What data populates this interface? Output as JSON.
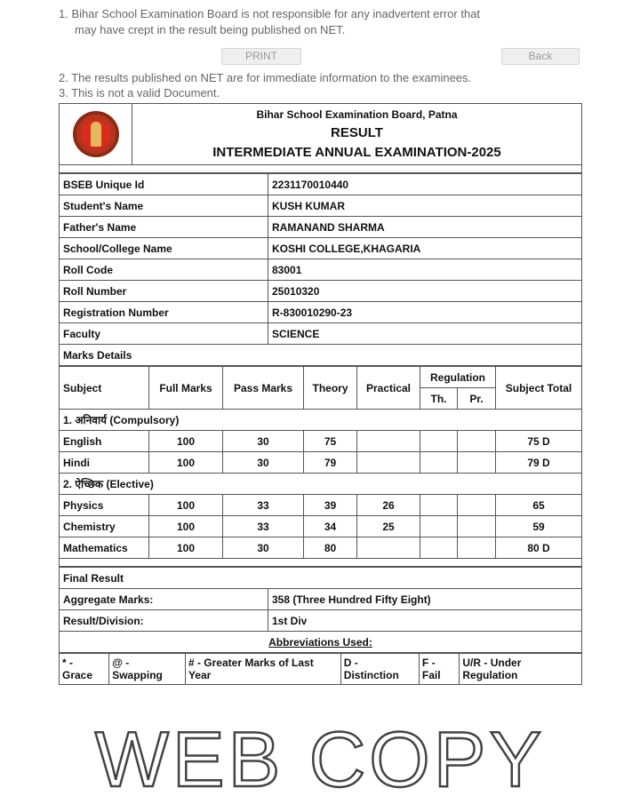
{
  "toolbar": {
    "print_label": "PRINT",
    "back_label": "Back"
  },
  "header": {
    "board": "Bihar School Examination Board, Patna",
    "title": "RESULT",
    "exam": "INTERMEDIATE ANNUAL EXAMINATION-2025"
  },
  "student": [
    {
      "label": "BSEB Unique Id",
      "value": "2231170010440"
    },
    {
      "label": "Student's Name",
      "value": "KUSH KUMAR"
    },
    {
      "label": "Father's Name",
      "value": "RAMANAND SHARMA"
    },
    {
      "label": "School/College Name",
      "value": "KOSHI COLLEGE,KHAGARIA"
    },
    {
      "label": "Roll Code",
      "value": "83001"
    },
    {
      "label": "Roll Number",
      "value": "25010320"
    },
    {
      "label": "Registration Number",
      "value": "R-830010290-23"
    },
    {
      "label": "Faculty",
      "value": "SCIENCE"
    }
  ],
  "marks": {
    "title": "Marks Details",
    "columns": {
      "subject": "Subject",
      "full": "Full Marks",
      "pass": "Pass Marks",
      "theory": "Theory",
      "practical": "Practical",
      "regulation": "Regulation",
      "th": "Th.",
      "pr": "Pr.",
      "total": "Subject Total"
    },
    "groups": [
      {
        "label": "1. अनिवार्य (Compulsory)",
        "rows": [
          {
            "subject": "English",
            "full": "100",
            "pass": "30",
            "theory": "75",
            "practical": "",
            "th": "",
            "pr": "",
            "total": "75 D"
          },
          {
            "subject": "Hindi",
            "full": "100",
            "pass": "30",
            "theory": "79",
            "practical": "",
            "th": "",
            "pr": "",
            "total": "79 D"
          }
        ]
      },
      {
        "label": "2. ऐच्छिक (Elective)",
        "rows": [
          {
            "subject": "Physics",
            "full": "100",
            "pass": "33",
            "theory": "39",
            "practical": "26",
            "th": "",
            "pr": "",
            "total": "65"
          },
          {
            "subject": "Chemistry",
            "full": "100",
            "pass": "33",
            "theory": "34",
            "practical": "25",
            "th": "",
            "pr": "",
            "total": "59"
          },
          {
            "subject": "Mathematics",
            "full": "100",
            "pass": "30",
            "theory": "80",
            "practical": "",
            "th": "",
            "pr": "",
            "total": "80 D"
          }
        ]
      }
    ]
  },
  "final": {
    "title": "Final Result",
    "aggregate_label": "Aggregate Marks:",
    "aggregate_value": "358 (Three Hundred Fifty Eight)",
    "division_label": "Result/Division:",
    "division_value": "1st Div"
  },
  "abbreviations": {
    "title": "Abbreviations Used:",
    "items": [
      "* - Grace",
      "@ - Swapping",
      "# - Greater Marks of Last Year",
      "D - Distinction",
      "F - Fail",
      "U/R - Under Regulation"
    ]
  },
  "watermark": {
    "main": "WEB COPY",
    "lines": [
      "1.  Bihar School Examination Board is not responsible for any inadvertent error that",
      "may have crept in the result being published on NET.",
      "2.  The results published on NET are for immediate information to the examinees.",
      "3.  This is not a valid Document."
    ]
  }
}
